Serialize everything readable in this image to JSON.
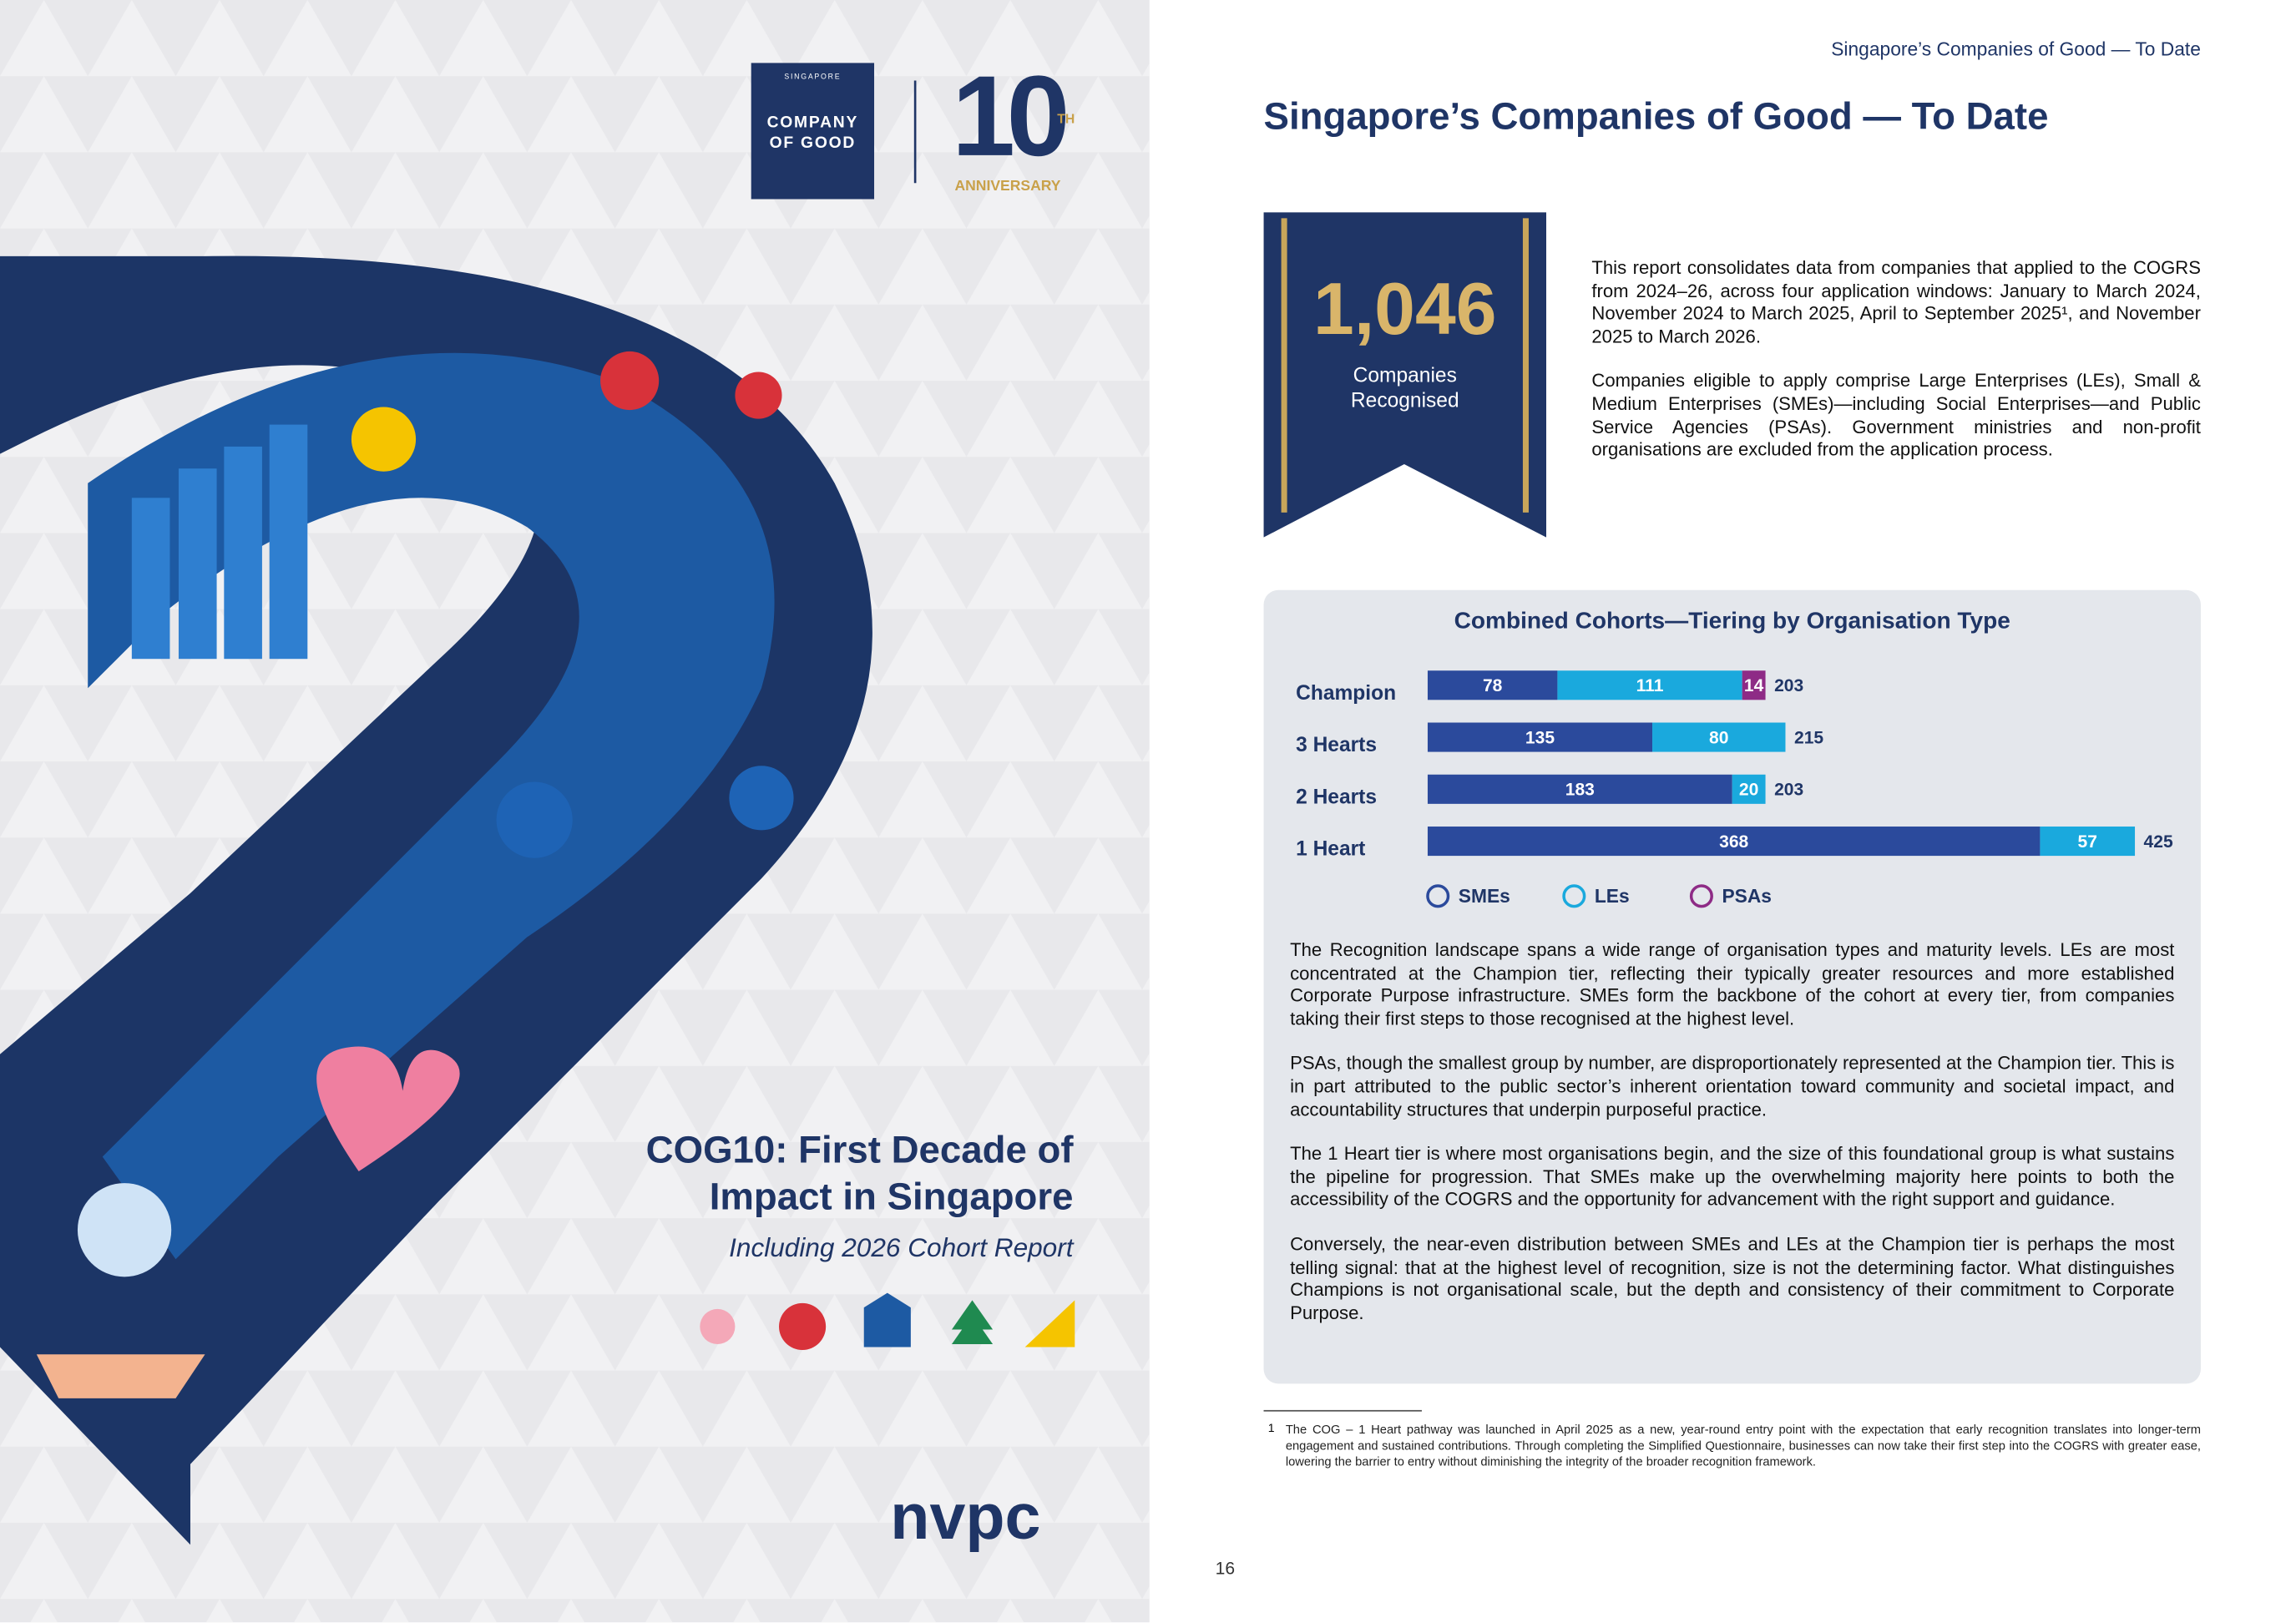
{
  "cover": {
    "logo_top": "SINGAPORE",
    "logo_line1": "COMPANY",
    "logo_line2": "OF GOOD",
    "anniversary_number": "10",
    "anniversary_suffix": "TH",
    "anniversary_label": "ANNIVERSARY",
    "title_line1": "COG10: First Decade of",
    "title_line2": "Impact in Singapore",
    "subtitle": "Including 2026 Cohort Report",
    "publisher": "nvpc"
  },
  "page": {
    "running_header": "Singapore’s Companies of Good — To Date",
    "title": "Singapore’s Companies of Good — To Date",
    "stat_number": "1,046",
    "stat_label_line1": "Companies",
    "stat_label_line2": "Recognised",
    "intro": [
      "This report consolidates data from companies that applied to the COGRS from 2024–26, across four application windows: January to March 2024, November 2024 to March 2025, April to September 2025¹, and November 2025 to March 2026.",
      "Companies eligible to apply comprise Large Enterprises (LEs), Small & Medium Enterprises (SMEs)—including Social Enterprises—and Public Service Agencies (PSAs). Government ministries and non-profit organisations are excluded from the application process."
    ],
    "paragraphs": [
      "The Recognition landscape spans a wide range of organisation types and maturity levels. LEs are most concentrated at the Champion tier, reflecting their typically greater resources and more established Corporate Purpose infrastructure. SMEs form the backbone of the cohort at every tier, from companies taking their first steps to those recognised at the highest level.",
      "PSAs, though the smallest group by number, are disproportionately represented at the Champion tier. This is in part attributed to the public sector’s inherent orientation toward community and societal impact, and accountability structures that underpin purposeful practice.",
      "The 1 Heart tier is where most organisations begin, and the size of this foundational group is what sustains the pipeline for progression. That SMEs make up the overwhelming majority here points to both the accessibility of the COGRS and the opportunity for advancement with the right support and guidance.",
      "Conversely, the near-even distribution between SMEs and LEs at the Champion tier is perhaps the most telling signal: that at the highest level of recognition, size is not the determining factor. What distinguishes Champions is not organisational scale, but the depth and consistency of their commitment to Corporate Purpose."
    ],
    "footnote_number": "1",
    "footnote": "The COG – 1 Heart pathway was launched in April 2025 as a new, year-round entry point with the expectation that early recognition translates into longer-term engagement and sustained contributions. Through completing the Simplified Questionnaire, businesses can now take their first step into the COGRS with greater ease, lowering the barrier to entry without diminishing the integrity of the broader recognition framework.",
    "page_number": "16"
  },
  "chart_data": {
    "type": "stacked-bar-horizontal",
    "title": "Combined Cohorts—Tiering by Organisation Type",
    "categories": [
      "Champion",
      "3 Hearts",
      "2 Hearts",
      "1 Heart"
    ],
    "series": [
      {
        "name": "SMEs",
        "color": "#2b4a9c",
        "values": [
          78,
          135,
          183,
          368
        ]
      },
      {
        "name": "LEs",
        "color": "#1aa9dd",
        "values": [
          111,
          80,
          20,
          57
        ]
      },
      {
        "name": "PSAs",
        "color": "#8e2b86",
        "values": [
          14,
          null,
          null,
          null
        ]
      }
    ],
    "totals": [
      203,
      215,
      203,
      425
    ],
    "legend": "bottom"
  }
}
